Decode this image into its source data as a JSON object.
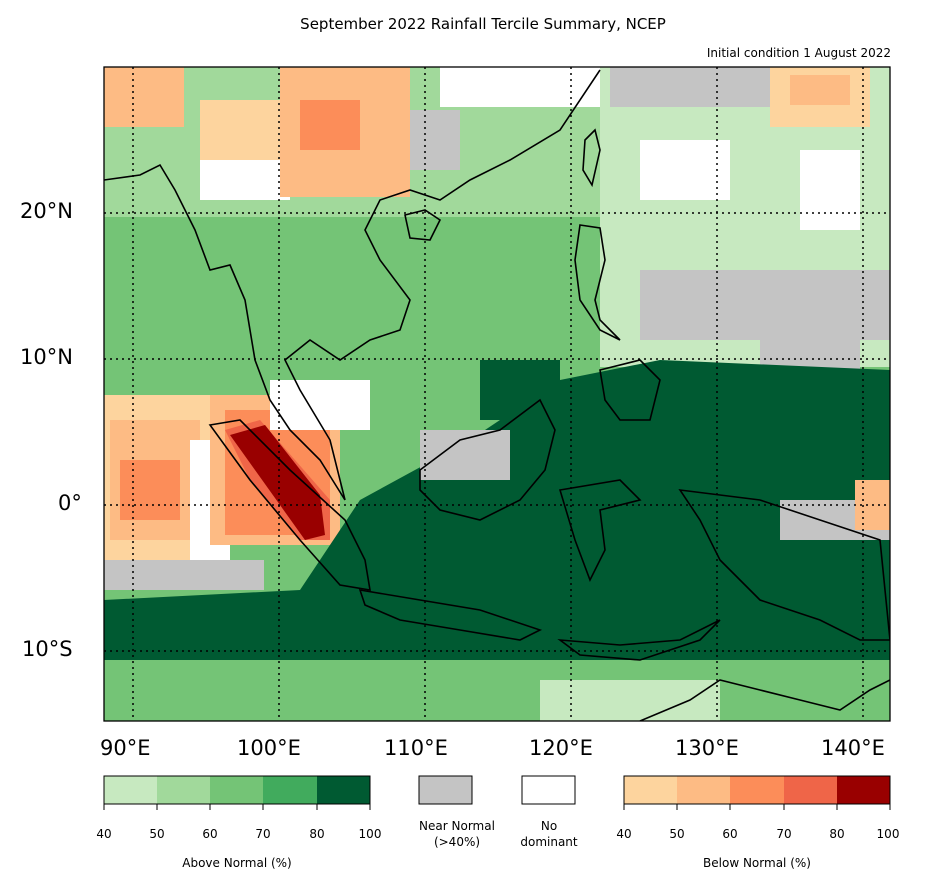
{
  "title": "September 2022 Rainfall Tercile Summary, NCEP",
  "subtitle": "Initial condition 1 August 2022",
  "lat_labels": [
    "20°N",
    "10°N",
    "0°",
    "10°S"
  ],
  "lon_labels": [
    "90°E",
    "100°E",
    "110°E",
    "120°E",
    "130°E",
    "140°E"
  ],
  "colors": {
    "above": [
      "#c7e9c0",
      "#a1d99b",
      "#74c476",
      "#41ab5d",
      "#005a32"
    ],
    "below": [
      "#fdd49e",
      "#fdbb84",
      "#fc8d59",
      "#ef6548",
      "#990000"
    ],
    "near_normal": "#c4c4c4",
    "no_dominant": "#ffffff"
  },
  "legend": {
    "above_ticks": [
      "40",
      "50",
      "60",
      "70",
      "80",
      "100"
    ],
    "above_label": "Above Normal (%)",
    "near_normal_label": "Near Normal",
    "near_normal_sub": "(>40%)",
    "no_dominant_label": "No",
    "no_dominant_sub": "dominant",
    "below_ticks": [
      "40",
      "50",
      "60",
      "70",
      "80",
      "100"
    ],
    "below_label": "Below Normal (%)"
  }
}
